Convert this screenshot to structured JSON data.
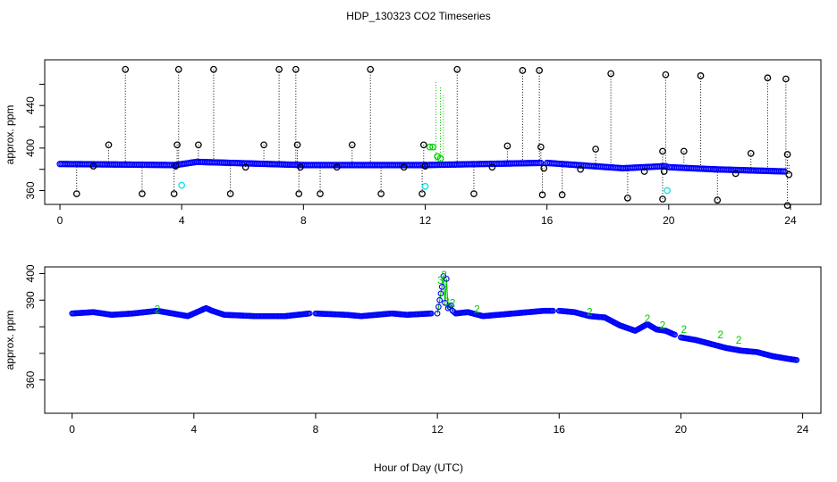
{
  "figure": {
    "title": "HDP_130323  CO2 Timeseries",
    "xlabel": "Hour of Day (UTC)"
  },
  "chart_data": [
    {
      "type": "scatter",
      "name": "top-panel",
      "ylabel": "approx. ppm",
      "xlim": [
        -0.5,
        25
      ],
      "ylim": [
        347,
        483
      ],
      "x_ticks": [
        0,
        4,
        8,
        12,
        16,
        20,
        24
      ],
      "y_ticks": [
        360,
        400,
        440
      ],
      "y_minor_ticks": [
        380,
        420,
        460
      ],
      "baseline_segments": [
        {
          "x": [
            0.0,
            3.8
          ],
          "y": [
            385,
            384
          ]
        },
        {
          "x": [
            3.8,
            4.5
          ],
          "y": [
            384,
            387
          ]
        },
        {
          "x": [
            4.5,
            8.0
          ],
          "y": [
            387,
            384
          ]
        },
        {
          "x": [
            8.0,
            12.0
          ],
          "y": [
            384,
            384
          ]
        },
        {
          "x": [
            12.0,
            15.8
          ],
          "y": [
            384,
            386
          ]
        },
        {
          "x": [
            16.0,
            18.5
          ],
          "y": [
            386,
            381
          ]
        },
        {
          "x": [
            18.5,
            19.9
          ],
          "y": [
            381,
            383
          ]
        },
        {
          "x": [
            20.0,
            21.5
          ],
          "y": [
            382,
            380
          ]
        },
        {
          "x": [
            21.5,
            23.8
          ],
          "y": [
            380,
            378
          ]
        }
      ],
      "spikes_high": [
        [
          1.6,
          403
        ],
        [
          2.15,
          474
        ],
        [
          3.85,
          403
        ],
        [
          3.9,
          474
        ],
        [
          4.55,
          403
        ],
        [
          5.05,
          474
        ],
        [
          6.7,
          403
        ],
        [
          7.2,
          474
        ],
        [
          7.75,
          474
        ],
        [
          7.8,
          403
        ],
        [
          9.6,
          403
        ],
        [
          10.2,
          474
        ],
        [
          11.95,
          403
        ],
        [
          13.05,
          474
        ],
        [
          14.7,
          402
        ],
        [
          15.2,
          473
        ],
        [
          15.75,
          473
        ],
        [
          15.8,
          401
        ],
        [
          17.6,
          399
        ],
        [
          18.1,
          470
        ],
        [
          19.8,
          397
        ],
        [
          19.9,
          469
        ],
        [
          20.5,
          397
        ],
        [
          21.05,
          468
        ],
        [
          22.7,
          395
        ],
        [
          23.25,
          466
        ],
        [
          23.85,
          465
        ],
        [
          23.9,
          394
        ]
      ],
      "spikes_low": [
        [
          0.55,
          357
        ],
        [
          1.1,
          383
        ],
        [
          2.7,
          357
        ],
        [
          3.75,
          357
        ],
        [
          3.8,
          383
        ],
        [
          5.6,
          357
        ],
        [
          6.1,
          382
        ],
        [
          7.85,
          357
        ],
        [
          7.9,
          382
        ],
        [
          8.55,
          357
        ],
        [
          9.1,
          382
        ],
        [
          10.55,
          357
        ],
        [
          11.3,
          382
        ],
        [
          11.9,
          357
        ],
        [
          12.0,
          383
        ],
        [
          13.6,
          357
        ],
        [
          14.2,
          382
        ],
        [
          15.85,
          356
        ],
        [
          15.9,
          381
        ],
        [
          16.5,
          356
        ],
        [
          17.1,
          380
        ],
        [
          18.65,
          353
        ],
        [
          19.2,
          378
        ],
        [
          19.8,
          352
        ],
        [
          19.85,
          378
        ],
        [
          21.6,
          351
        ],
        [
          22.2,
          376
        ],
        [
          23.9,
          346
        ],
        [
          23.95,
          375
        ]
      ],
      "cyan_points": [
        [
          4.0,
          365
        ],
        [
          12.0,
          364
        ],
        [
          19.95,
          360
        ]
      ],
      "green_points": [
        [
          12.15,
          401
        ],
        [
          12.25,
          401
        ],
        [
          12.4,
          392
        ],
        [
          12.5,
          390
        ]
      ],
      "green_dotted_spikes": [
        [
          12.35,
          462
        ],
        [
          12.5,
          457
        ],
        [
          12.6,
          450
        ]
      ]
    },
    {
      "type": "scatter",
      "name": "bottom-panel",
      "ylabel": "approx. ppm",
      "xlim": [
        -0.9,
        24.6
      ],
      "ylim": [
        347.5,
        402.5
      ],
      "x_ticks": [
        0,
        4,
        8,
        12,
        16,
        20,
        24
      ],
      "y_ticks": [
        360,
        390,
        400
      ],
      "y_minor_ticks": [
        370,
        380
      ],
      "segments": [
        {
          "x": [
            0.0,
            0.7,
            1.3,
            2.0,
            2.8,
            3.3,
            3.8,
            4.0,
            4.4,
            4.6,
            5.0,
            6.0,
            7.0,
            7.8
          ],
          "y": [
            385,
            385.5,
            384.5,
            385,
            386,
            385,
            384,
            385,
            387,
            386,
            384.5,
            384,
            384,
            385
          ]
        },
        {
          "x": [
            8.0,
            9.0,
            9.5,
            10.5,
            11.0,
            11.8
          ],
          "y": [
            385,
            384.5,
            384,
            385,
            384.5,
            385
          ]
        },
        {
          "x": [
            12.0,
            12.15,
            12.2,
            12.25,
            12.3,
            12.35,
            12.45,
            12.5,
            12.6,
            13.0,
            13.5,
            14.0,
            14.5,
            15.0,
            15.5,
            15.8
          ],
          "y": [
            385,
            395,
            399,
            389,
            398,
            387,
            388,
            386,
            385,
            385.5,
            384,
            384.5,
            385,
            385.5,
            386,
            386
          ]
        },
        {
          "x": [
            16.0,
            16.5,
            17.0,
            17.5,
            18.0,
            18.5,
            18.9,
            19.2,
            19.5,
            19.8
          ],
          "y": [
            386,
            385.5,
            384,
            383.5,
            380.5,
            378.5,
            381,
            379,
            378.5,
            377
          ]
        },
        {
          "x": [
            20.0,
            20.5,
            21.0,
            21.5,
            22.0,
            22.5,
            23.0,
            23.5,
            23.8
          ],
          "y": [
            376,
            375,
            373.5,
            372,
            371,
            370.5,
            369,
            368,
            367.5
          ]
        }
      ],
      "green_labels": [
        {
          "x": 2.8,
          "y": 386.5,
          "text": "2"
        },
        {
          "x": 12.1,
          "y": 397.5,
          "text": "3"
        },
        {
          "x": 12.22,
          "y": 399.5,
          "text": "2"
        },
        {
          "x": 12.3,
          "y": 389.5,
          "text": "3"
        },
        {
          "x": 12.5,
          "y": 389.0,
          "text": "2"
        },
        {
          "x": 13.3,
          "y": 386.5,
          "text": "2"
        },
        {
          "x": 17.0,
          "y": 385.5,
          "text": "2"
        },
        {
          "x": 18.9,
          "y": 383.0,
          "text": "2"
        },
        {
          "x": 19.4,
          "y": 380.5,
          "text": "2"
        },
        {
          "x": 20.1,
          "y": 379.0,
          "text": "2"
        },
        {
          "x": 21.3,
          "y": 377.0,
          "text": "2"
        },
        {
          "x": 21.9,
          "y": 375.0,
          "text": "2"
        }
      ]
    }
  ],
  "colors": {
    "blue": "#0000ff",
    "green": "#00cc00",
    "cyan": "#00e5e5",
    "black": "#000000"
  }
}
